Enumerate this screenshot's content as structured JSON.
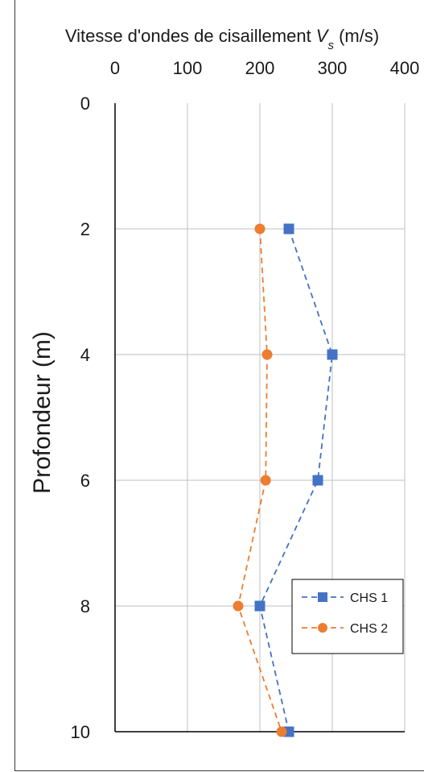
{
  "chart_data": {
    "type": "line",
    "title_main": "Vitesse d'ondes de cisaillement ",
    "title_var": "V",
    "title_sub": "s",
    "title_unit": " (m/s)",
    "xlabel": "Vitesse d'ondes de cisaillement Vs (m/s)",
    "ylabel": "Profondeur (m)",
    "xlim": [
      0,
      400
    ],
    "ylim": [
      0,
      10
    ],
    "x_ticks": [
      "0",
      "100",
      "200",
      "300",
      "400"
    ],
    "y_ticks": [
      "0",
      "2",
      "4",
      "6",
      "8",
      "10"
    ],
    "x_axis_position": "top",
    "y_axis_inverted": true,
    "grid": true,
    "legend_position": "bottom-right",
    "series": [
      {
        "name": "CHS 1",
        "color": "#4472C4",
        "marker": "square",
        "line": "dashed",
        "x": [
          240,
          300,
          280,
          200,
          240
        ],
        "y": [
          2,
          4,
          6,
          8,
          10
        ]
      },
      {
        "name": "CHS 2",
        "color": "#ED7D31",
        "marker": "circle",
        "line": "dashed",
        "x": [
          200,
          210,
          208,
          170,
          230
        ],
        "y": [
          2,
          4,
          6,
          8,
          10
        ]
      }
    ]
  }
}
